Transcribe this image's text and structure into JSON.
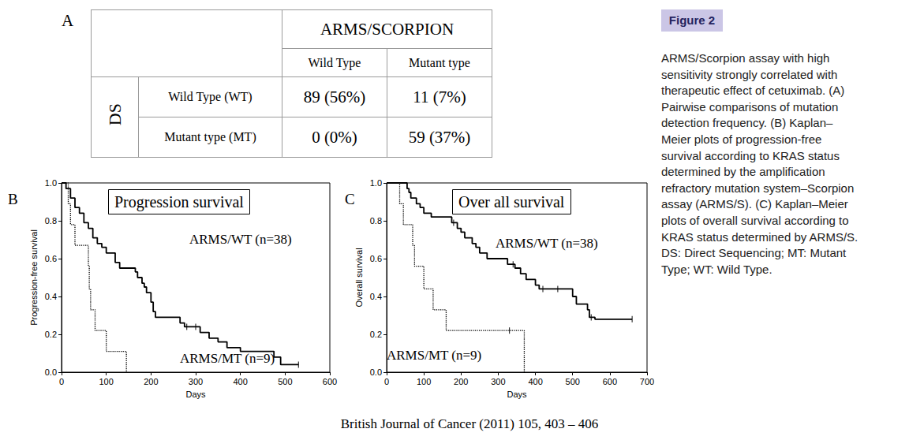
{
  "table": {
    "label": "A",
    "header": "ARMS/SCORPION",
    "columns": [
      "Wild Type",
      "Mutant type"
    ],
    "row_group": "DS",
    "rows": [
      [
        "Wild Type (WT)",
        "89 (56%)",
        "11 (7%)"
      ],
      [
        "Mutant type (MT)",
        "0 (0%)",
        "59 (37%)"
      ]
    ]
  },
  "chart_data": [
    {
      "type": "line",
      "panel_label": "B",
      "title": "Progression survival",
      "x_label": "Days",
      "y_label": "Progression-free survival",
      "xlim": [
        0,
        600
      ],
      "xticks": [
        0,
        100,
        200,
        300,
        400,
        500,
        600
      ],
      "ylim": [
        0,
        1
      ],
      "yticks": [
        {
          "value": 0,
          "label": "0.0"
        },
        {
          "value": 0.2,
          "label": "0.2"
        },
        {
          "value": 0.4,
          "label": "0.4"
        },
        {
          "value": 0.6,
          "label": "0.6"
        },
        {
          "value": 0.8,
          "label": "0.8"
        },
        {
          "value": 1,
          "label": "1.0"
        }
      ],
      "grid": false,
      "series": [
        {
          "name": "ARMS/WT (n=38)",
          "color": "#000000",
          "line_style": "solid",
          "x": [
            0,
            10,
            20,
            30,
            40,
            50,
            60,
            70,
            80,
            90,
            100,
            120,
            130,
            165,
            170,
            180,
            185,
            190,
            200,
            205,
            210,
            265,
            275,
            310,
            330,
            350,
            370,
            400,
            475,
            490,
            530
          ],
          "values": [
            1.0,
            0.97,
            0.92,
            0.87,
            0.84,
            0.79,
            0.76,
            0.71,
            0.68,
            0.66,
            0.63,
            0.58,
            0.55,
            0.53,
            0.5,
            0.47,
            0.45,
            0.42,
            0.37,
            0.32,
            0.29,
            0.26,
            0.24,
            0.21,
            0.18,
            0.16,
            0.13,
            0.11,
            0.08,
            0.04,
            0.04
          ],
          "censored": [
            [
              280,
              0.24
            ],
            [
              300,
              0.24
            ],
            [
              530,
              0.04
            ]
          ]
        },
        {
          "name": "ARMS/MT (n=9)",
          "color": "#000000",
          "line_style": "dotted",
          "x": [
            0,
            15,
            20,
            30,
            60,
            62,
            65,
            75,
            100,
            145
          ],
          "values": [
            1.0,
            0.89,
            0.78,
            0.67,
            0.56,
            0.44,
            0.33,
            0.22,
            0.11,
            0.0
          ],
          "censored": []
        }
      ]
    },
    {
      "type": "line",
      "panel_label": "C",
      "title": "Over all survival",
      "x_label": "Days",
      "y_label": "Overall survival",
      "xlim": [
        0,
        700
      ],
      "xticks": [
        0,
        100,
        200,
        300,
        400,
        500,
        600,
        700
      ],
      "ylim": [
        0,
        1
      ],
      "yticks": [
        {
          "value": 0,
          "label": "0.0"
        },
        {
          "value": 0.2,
          "label": "0.2"
        },
        {
          "value": 0.4,
          "label": "0.4"
        },
        {
          "value": 0.6,
          "label": "0.6"
        },
        {
          "value": 0.8,
          "label": "0.8"
        },
        {
          "value": 1,
          "label": "1.0"
        }
      ],
      "grid": false,
      "series": [
        {
          "name": "ARMS/WT (n=38)",
          "color": "#000000",
          "line_style": "solid",
          "x": [
            0,
            55,
            60,
            65,
            80,
            90,
            100,
            120,
            175,
            190,
            200,
            210,
            230,
            240,
            250,
            270,
            325,
            345,
            360,
            375,
            400,
            410,
            500,
            510,
            540,
            545,
            560,
            660
          ],
          "values": [
            1.0,
            0.97,
            0.95,
            0.92,
            0.89,
            0.87,
            0.84,
            0.82,
            0.79,
            0.76,
            0.74,
            0.71,
            0.68,
            0.66,
            0.63,
            0.6,
            0.57,
            0.55,
            0.52,
            0.49,
            0.46,
            0.44,
            0.4,
            0.36,
            0.33,
            0.29,
            0.28,
            0.28
          ],
          "censored": [
            [
              180,
              0.79
            ],
            [
              340,
              0.57
            ],
            [
              420,
              0.44
            ],
            [
              460,
              0.44
            ],
            [
              550,
              0.29
            ],
            [
              660,
              0.28
            ]
          ]
        },
        {
          "name": "ARMS/MT (n=9)",
          "color": "#000000",
          "line_style": "dotted",
          "x": [
            0,
            35,
            45,
            70,
            75,
            100,
            125,
            160,
            370
          ],
          "values": [
            1.0,
            0.89,
            0.78,
            0.67,
            0.56,
            0.44,
            0.33,
            0.22,
            0.0
          ],
          "censored": [
            [
              330,
              0.22
            ]
          ]
        }
      ]
    }
  ],
  "figure_label": "Figure 2",
  "caption_lines": [
    "ARMS/Scorpion assay with high",
    "sensitivity strongly correlated with",
    "therapeutic effect of cetuximab. (A)",
    "Pairwise comparisons of mutation",
    "detection frequency. (B) Kaplan–",
    "Meier plots of progression-free",
    "survival according to KRAS status",
    "determined by the amplification",
    "refractory mutation system–Scorpion",
    "assay (ARMS/S). (C) Kaplan–Meier",
    "plots of overall survival according to",
    "KRAS status determined by ARMS/S.",
    "DS: Direct Sequencing; MT: Mutant",
    "Type; WT: Wild Type."
  ],
  "citation": "British Journal of Cancer (2011) 105, 403 – 406"
}
